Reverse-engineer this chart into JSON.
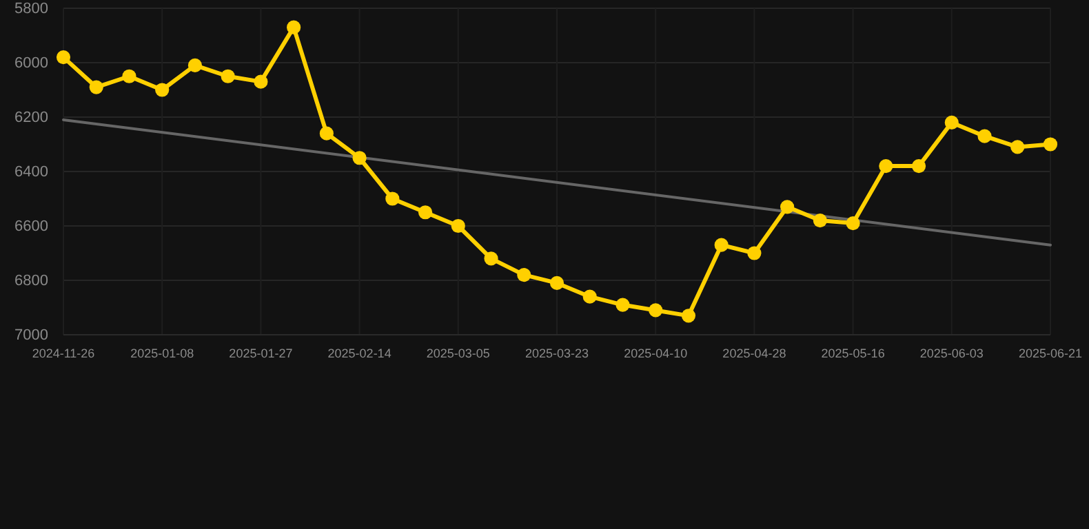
{
  "chart_data": {
    "type": "line",
    "categories": [
      "2024-11-26",
      null,
      null,
      "2025-01-08",
      null,
      null,
      "2025-01-27",
      null,
      null,
      "2025-02-14",
      null,
      null,
      "2025-03-05",
      null,
      null,
      "2025-03-23",
      null,
      null,
      "2025-04-10",
      null,
      null,
      "2025-04-28",
      null,
      null,
      "2025-05-16",
      null,
      null,
      "2025-06-03",
      null,
      null,
      "2025-06-21"
    ],
    "series": [
      {
        "color": "#ffd000",
        "marker": "circle",
        "values": [
          5980,
          6090,
          6050,
          6100,
          6010,
          6050,
          6070,
          5870,
          6260,
          6350,
          6500,
          6550,
          6600,
          6720,
          6780,
          6810,
          6860,
          6890,
          6910,
          6930,
          6670,
          6700,
          6530,
          6580,
          6590,
          6380,
          6380,
          6220,
          6270,
          6310,
          6300
        ]
      },
      {
        "type": "line",
        "color": "#666666",
        "marker": "none",
        "values": [
          6210,
          null,
          null,
          null,
          null,
          null,
          null,
          null,
          null,
          null,
          null,
          null,
          null,
          null,
          null,
          null,
          null,
          null,
          null,
          null,
          null,
          null,
          null,
          null,
          null,
          null,
          null,
          null,
          null,
          null,
          6670
        ]
      }
    ],
    "ylim": [
      7000,
      5800
    ],
    "yticks": [
      5800,
      6000,
      6200,
      6400,
      6600,
      6800,
      7000
    ],
    "grid": true,
    "line_style": "solid"
  }
}
